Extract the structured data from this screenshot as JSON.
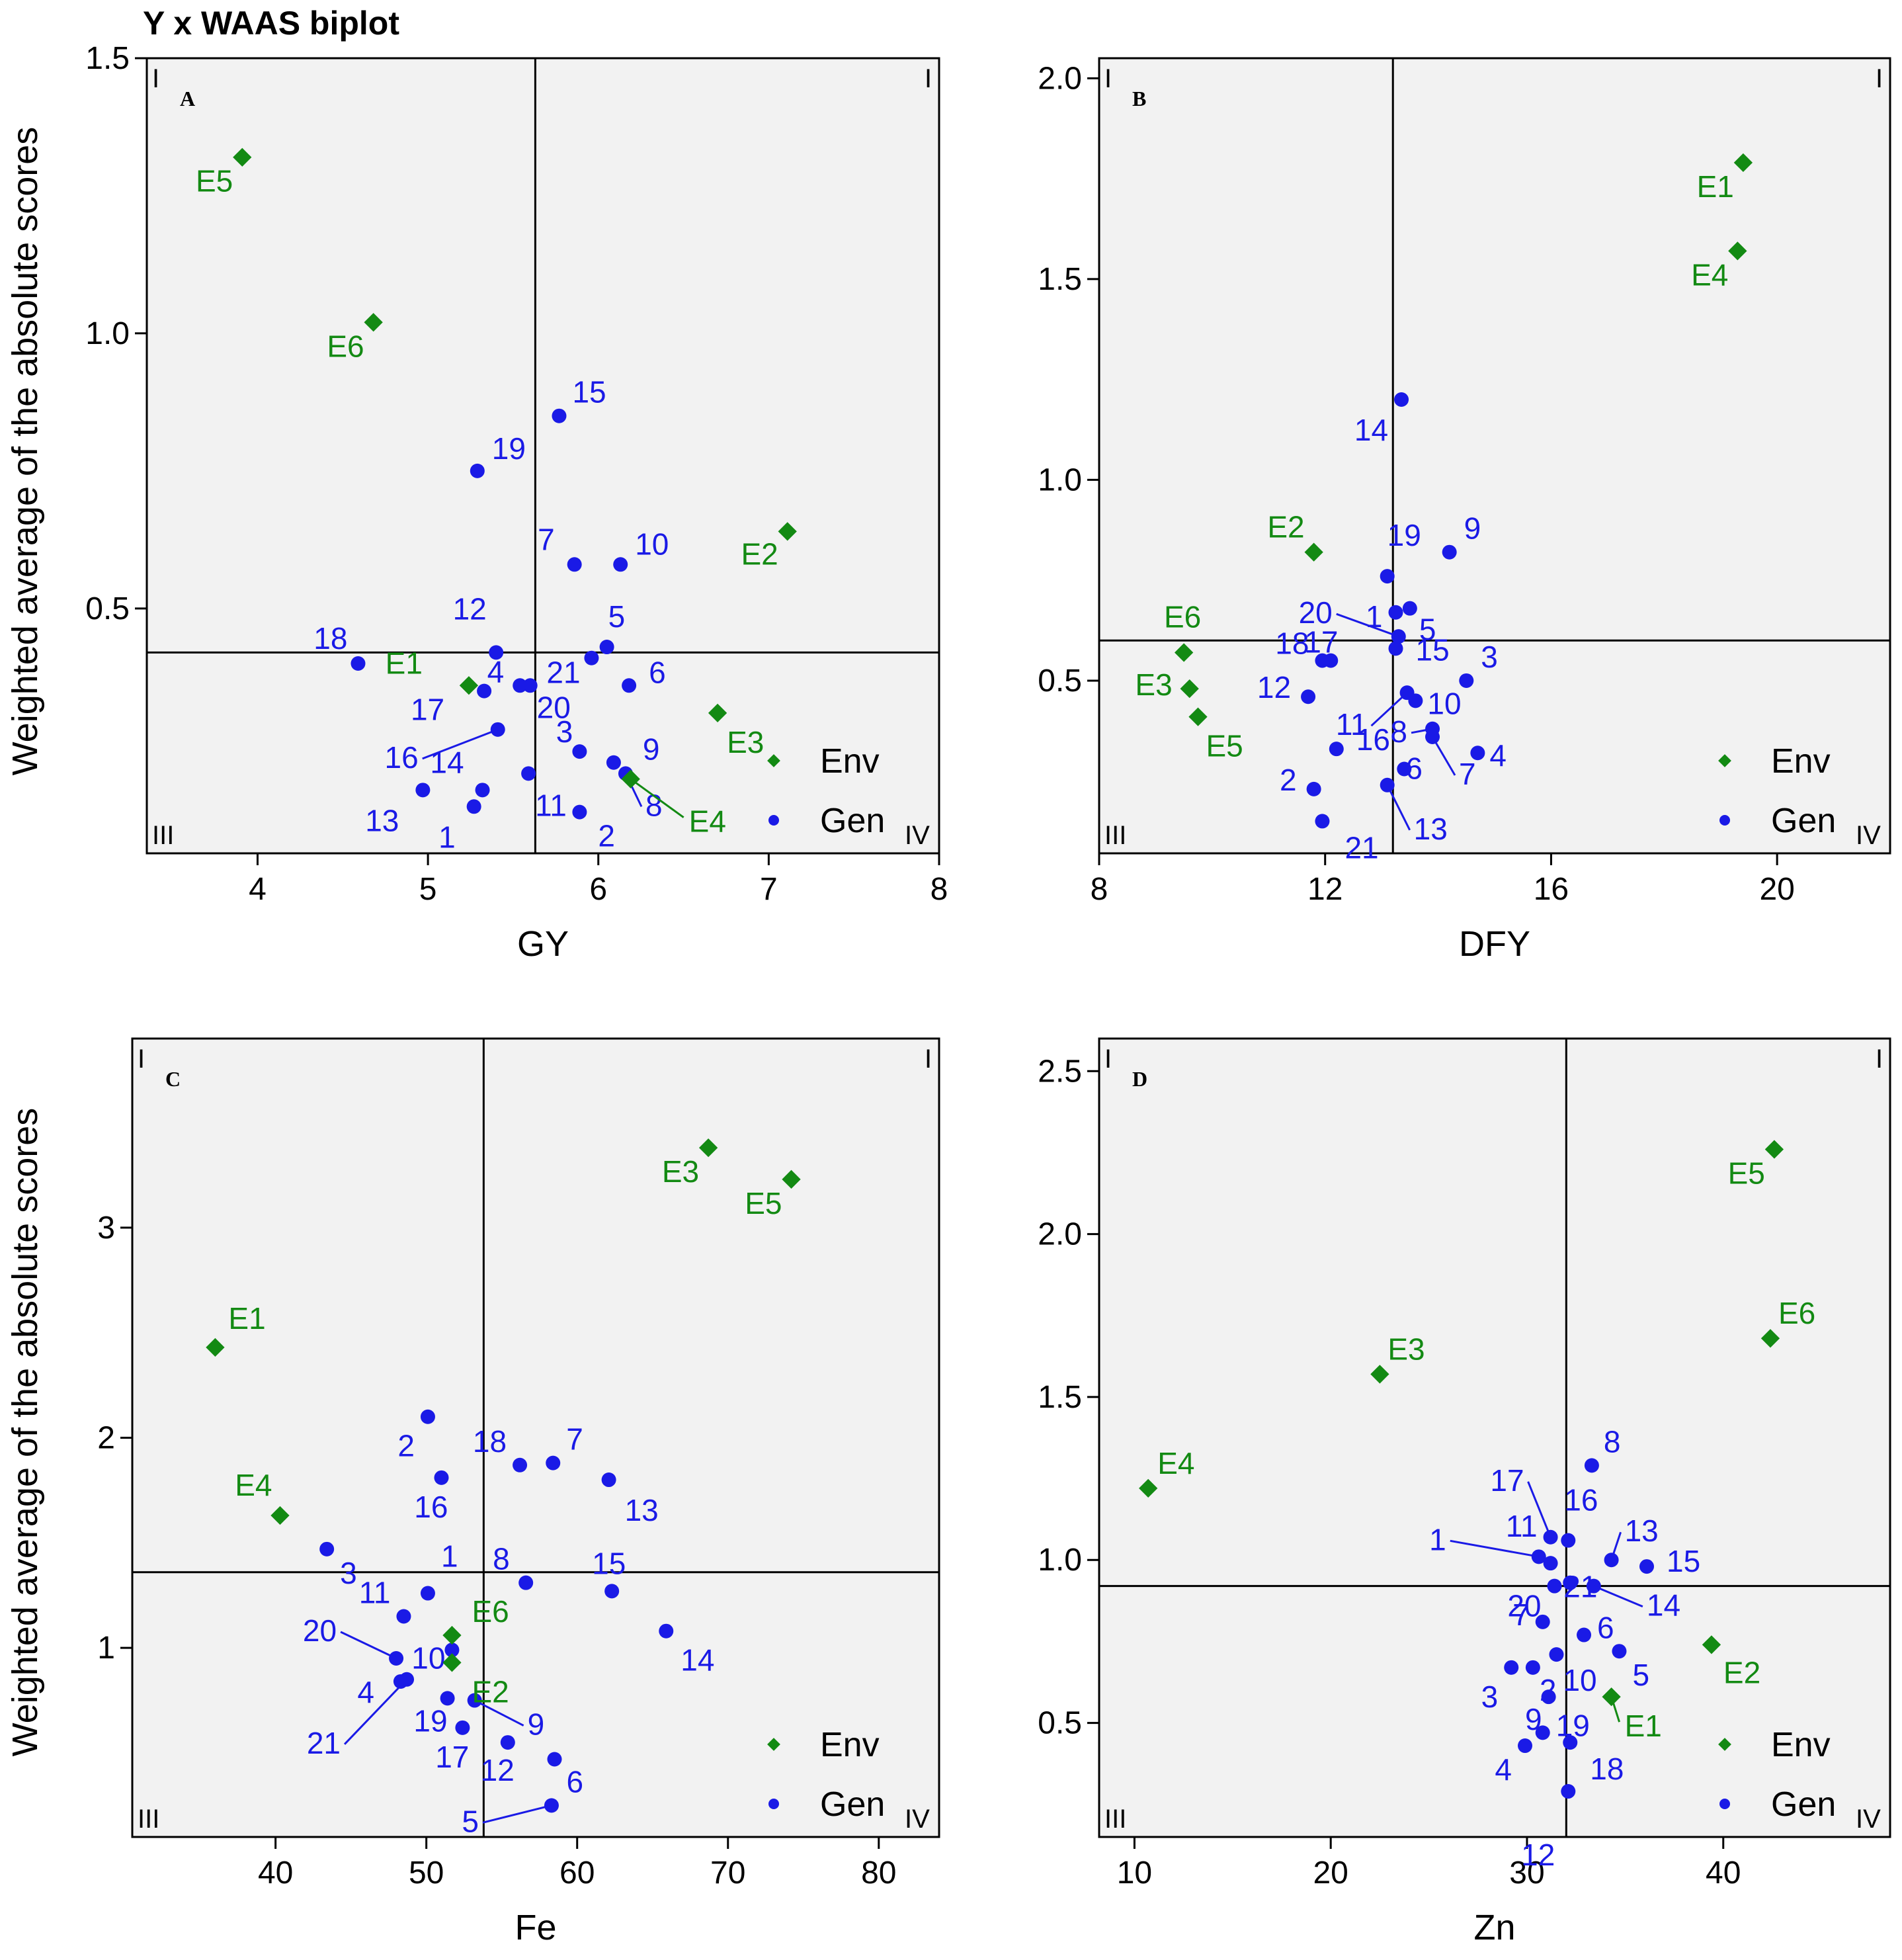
{
  "figure_title": "Y x WAAS biplot",
  "y_axis_title": "Weighted average of the absolute scores",
  "legend": {
    "env": "Env",
    "gen": "Gen"
  },
  "colors": {
    "env": "#138a13",
    "gen": "#1a1ae6",
    "panel_bg": "#f2f2f2",
    "axis": "#000000"
  },
  "quadrant_labels": {
    "q1_left": "I",
    "q1_right": "I",
    "q3": "III",
    "q4": "IV"
  },
  "chart_data": [
    {
      "type": "scatter",
      "panel": "A",
      "xlabel": "GY",
      "xlim": [
        3.35,
        8.0
      ],
      "ylim": [
        0.055,
        1.5
      ],
      "xticks": [
        4,
        5,
        6,
        7,
        8
      ],
      "yticks": [
        0.5,
        1.0,
        1.5
      ],
      "xtick_labels": [
        "4",
        "5",
        "6",
        "7",
        "8"
      ],
      "ytick_labels": [
        "0.5",
        "1.0",
        "1.5"
      ],
      "vline": 5.63,
      "hline": 0.42,
      "env": [
        {
          "label": "E1",
          "x": 5.24,
          "y": 0.36
        },
        {
          "label": "E2",
          "x": 7.11,
          "y": 0.64
        },
        {
          "label": "E3",
          "x": 6.7,
          "y": 0.31
        },
        {
          "label": "E4",
          "x": 6.19,
          "y": 0.19
        },
        {
          "label": "E5",
          "x": 3.91,
          "y": 1.32
        },
        {
          "label": "E6",
          "x": 4.68,
          "y": 1.02
        }
      ],
      "gen": [
        {
          "label": "1",
          "x": 5.27,
          "y": 0.14
        },
        {
          "label": "2",
          "x": 5.89,
          "y": 0.13
        },
        {
          "label": "3",
          "x": 5.89,
          "y": 0.24
        },
        {
          "label": "4",
          "x": 5.54,
          "y": 0.36
        },
        {
          "label": "5",
          "x": 6.05,
          "y": 0.43
        },
        {
          "label": "6",
          "x": 6.18,
          "y": 0.36
        },
        {
          "label": "7",
          "x": 5.86,
          "y": 0.58
        },
        {
          "label": "8",
          "x": 6.16,
          "y": 0.2
        },
        {
          "label": "9",
          "x": 6.09,
          "y": 0.22
        },
        {
          "label": "10",
          "x": 6.13,
          "y": 0.58
        },
        {
          "label": "11",
          "x": 5.59,
          "y": 0.2
        },
        {
          "label": "12",
          "x": 5.4,
          "y": 0.42
        },
        {
          "label": "13",
          "x": 4.97,
          "y": 0.17
        },
        {
          "label": "14",
          "x": 5.32,
          "y": 0.17
        },
        {
          "label": "15",
          "x": 5.77,
          "y": 0.85
        },
        {
          "label": "16",
          "x": 5.41,
          "y": 0.28
        },
        {
          "label": "17",
          "x": 5.33,
          "y": 0.35
        },
        {
          "label": "18",
          "x": 4.59,
          "y": 0.4
        },
        {
          "label": "19",
          "x": 5.29,
          "y": 0.75
        },
        {
          "label": "20",
          "x": 5.6,
          "y": 0.36
        },
        {
          "label": "21",
          "x": 5.96,
          "y": 0.41
        }
      ]
    },
    {
      "type": "scatter",
      "panel": "B",
      "xlabel": "DFY",
      "xlim": [
        8.0,
        22.0
      ],
      "ylim": [
        0.07,
        2.05
      ],
      "xticks": [
        8,
        12,
        16,
        20
      ],
      "yticks": [
        0.5,
        1.0,
        1.5,
        2.0
      ],
      "xtick_labels": [
        "8",
        "12",
        "16",
        "20"
      ],
      "ytick_labels": [
        "0.5",
        "1.0",
        "1.5",
        "2.0"
      ],
      "vline": 13.2,
      "hline": 0.6,
      "env": [
        {
          "label": "E1",
          "x": 19.4,
          "y": 1.79
        },
        {
          "label": "E2",
          "x": 11.8,
          "y": 0.82
        },
        {
          "label": "E3",
          "x": 9.6,
          "y": 0.48
        },
        {
          "label": "E4",
          "x": 19.3,
          "y": 1.57
        },
        {
          "label": "E5",
          "x": 9.75,
          "y": 0.41
        },
        {
          "label": "E6",
          "x": 9.5,
          "y": 0.57
        }
      ],
      "gen": [
        {
          "label": "1",
          "x": 13.25,
          "y": 0.67
        },
        {
          "label": "2",
          "x": 11.8,
          "y": 0.23
        },
        {
          "label": "3",
          "x": 14.5,
          "y": 0.5
        },
        {
          "label": "4",
          "x": 14.7,
          "y": 0.32
        },
        {
          "label": "5",
          "x": 13.5,
          "y": 0.68
        },
        {
          "label": "6",
          "x": 13.4,
          "y": 0.28
        },
        {
          "label": "7",
          "x": 13.9,
          "y": 0.36
        },
        {
          "label": "8",
          "x": 13.9,
          "y": 0.38
        },
        {
          "label": "9",
          "x": 14.2,
          "y": 0.82
        },
        {
          "label": "10",
          "x": 13.6,
          "y": 0.45
        },
        {
          "label": "11",
          "x": 13.45,
          "y": 0.47
        },
        {
          "label": "12",
          "x": 11.7,
          "y": 0.46
        },
        {
          "label": "13",
          "x": 13.1,
          "y": 0.24
        },
        {
          "label": "14",
          "x": 13.35,
          "y": 1.2
        },
        {
          "label": "15",
          "x": 13.25,
          "y": 0.58
        },
        {
          "label": "16",
          "x": 12.2,
          "y": 0.33
        },
        {
          "label": "17",
          "x": 12.1,
          "y": 0.55
        },
        {
          "label": "18",
          "x": 11.95,
          "y": 0.55
        },
        {
          "label": "19",
          "x": 13.1,
          "y": 0.76
        },
        {
          "label": "20",
          "x": 13.3,
          "y": 0.61
        },
        {
          "label": "21",
          "x": 11.95,
          "y": 0.15
        }
      ]
    },
    {
      "type": "scatter",
      "panel": "C",
      "xlabel": "Fe",
      "xlim": [
        30.5,
        84.0
      ],
      "ylim": [
        0.1,
        3.9
      ],
      "xticks": [
        40,
        50,
        60,
        70,
        80
      ],
      "yticks": [
        1,
        2,
        3
      ],
      "xtick_labels": [
        "40",
        "50",
        "60",
        "70",
        "80"
      ],
      "ytick_labels": [
        "1",
        "2",
        "3"
      ],
      "vline": 53.8,
      "hline": 1.36,
      "env": [
        {
          "label": "E1",
          "x": 36.0,
          "y": 2.43
        },
        {
          "label": "E2",
          "x": 51.7,
          "y": 0.93
        },
        {
          "label": "E3",
          "x": 68.7,
          "y": 3.38
        },
        {
          "label": "E4",
          "x": 40.3,
          "y": 1.63
        },
        {
          "label": "E5",
          "x": 74.2,
          "y": 3.23
        },
        {
          "label": "E6",
          "x": 51.7,
          "y": 1.06
        }
      ],
      "gen": [
        {
          "label": "1",
          "x": 50.1,
          "y": 1.26
        },
        {
          "label": "2",
          "x": 50.1,
          "y": 2.1
        },
        {
          "label": "3",
          "x": 43.4,
          "y": 1.47
        },
        {
          "label": "4",
          "x": 48.3,
          "y": 0.84
        },
        {
          "label": "5",
          "x": 58.3,
          "y": 0.25
        },
        {
          "label": "6",
          "x": 58.5,
          "y": 0.47
        },
        {
          "label": "7",
          "x": 58.4,
          "y": 1.88
        },
        {
          "label": "8",
          "x": 56.6,
          "y": 1.31
        },
        {
          "label": "9",
          "x": 53.2,
          "y": 0.75
        },
        {
          "label": "10",
          "x": 51.7,
          "y": 0.99
        },
        {
          "label": "11",
          "x": 48.5,
          "y": 1.15
        },
        {
          "label": "12",
          "x": 55.4,
          "y": 0.55
        },
        {
          "label": "13",
          "x": 62.1,
          "y": 1.8
        },
        {
          "label": "14",
          "x": 65.9,
          "y": 1.08
        },
        {
          "label": "15",
          "x": 62.3,
          "y": 1.27
        },
        {
          "label": "16",
          "x": 51.0,
          "y": 1.81
        },
        {
          "label": "17",
          "x": 52.4,
          "y": 0.62
        },
        {
          "label": "18",
          "x": 56.2,
          "y": 1.87
        },
        {
          "label": "19",
          "x": 51.4,
          "y": 0.76
        },
        {
          "label": "20",
          "x": 48.0,
          "y": 0.95
        },
        {
          "label": "21",
          "x": 48.7,
          "y": 0.85
        }
      ]
    },
    {
      "type": "scatter",
      "panel": "D",
      "xlabel": "Zn",
      "xlim": [
        8.2,
        48.5
      ],
      "ylim": [
        0.15,
        2.6
      ],
      "xticks": [
        10,
        20,
        30,
        40
      ],
      "yticks": [
        0.5,
        1.0,
        1.5,
        2.0,
        2.5
      ],
      "xtick_labels": [
        "10",
        "20",
        "30",
        "40"
      ],
      "ytick_labels": [
        "0.5",
        "1.0",
        "1.5",
        "2.0",
        "2.5"
      ],
      "vline": 32.0,
      "hline": 0.92,
      "env": [
        {
          "label": "E1",
          "x": 34.3,
          "y": 0.58
        },
        {
          "label": "E2",
          "x": 39.4,
          "y": 0.74
        },
        {
          "label": "E3",
          "x": 22.5,
          "y": 1.57
        },
        {
          "label": "E4",
          "x": 10.7,
          "y": 1.22
        },
        {
          "label": "E5",
          "x": 42.6,
          "y": 2.26
        },
        {
          "label": "E6",
          "x": 42.4,
          "y": 1.68
        }
      ],
      "gen": [
        {
          "label": "1",
          "x": 30.6,
          "y": 1.01
        },
        {
          "label": "2",
          "x": 30.3,
          "y": 0.67
        },
        {
          "label": "3",
          "x": 29.2,
          "y": 0.67
        },
        {
          "label": "4",
          "x": 29.9,
          "y": 0.43
        },
        {
          "label": "5",
          "x": 34.7,
          "y": 0.72
        },
        {
          "label": "6",
          "x": 32.9,
          "y": 0.77
        },
        {
          "label": "7",
          "x": 30.8,
          "y": 0.81
        },
        {
          "label": "8",
          "x": 33.3,
          "y": 1.29
        },
        {
          "label": "9",
          "x": 31.1,
          "y": 0.58
        },
        {
          "label": "10",
          "x": 31.5,
          "y": 0.71
        },
        {
          "label": "11",
          "x": 31.2,
          "y": 0.99
        },
        {
          "label": "12",
          "x": 32.1,
          "y": 0.29
        },
        {
          "label": "13",
          "x": 34.3,
          "y": 1.0
        },
        {
          "label": "14",
          "x": 33.4,
          "y": 0.92
        },
        {
          "label": "15",
          "x": 36.1,
          "y": 0.98
        },
        {
          "label": "16",
          "x": 32.1,
          "y": 1.06
        },
        {
          "label": "17",
          "x": 31.2,
          "y": 1.07
        },
        {
          "label": "18",
          "x": 32.2,
          "y": 0.44
        },
        {
          "label": "19",
          "x": 30.8,
          "y": 0.47
        },
        {
          "label": "20",
          "x": 31.4,
          "y": 0.92
        },
        {
          "label": "21",
          "x": 32.2,
          "y": 0.93
        }
      ]
    }
  ]
}
